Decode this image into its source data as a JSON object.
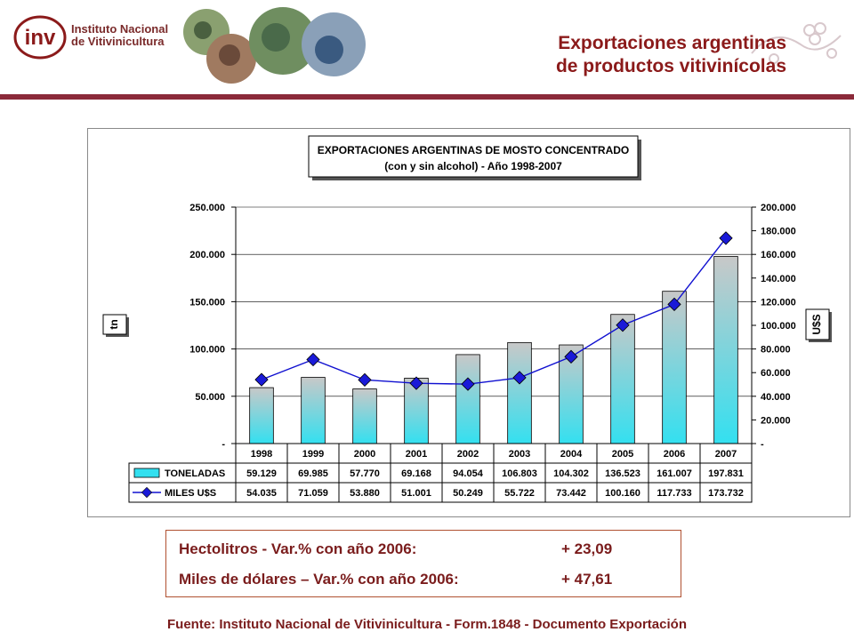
{
  "header": {
    "logo_letters": "inv",
    "logo_line1": "Instituto Nacional",
    "logo_line2": "de Vitivinicultura",
    "title_line1": "Exportaciones argentinas",
    "title_line2": "de productos vitivinícolas"
  },
  "info": {
    "row1_label": "Hectolitros - Var.% con año 2006:",
    "row1_value": "+ 23,09",
    "row2_label": "Miles de dólares – Var.% con año 2006:",
    "row2_value": "+ 47,61"
  },
  "source": "Fuente: Instituto Nacional de Vitivinicultura - Form.1848 - Documento Exportación",
  "colors": {
    "accent": "#8b1a1a",
    "rule": "#8b2a3a",
    "bar_top": "#c8c8c8",
    "bar_bottom": "#33e0f0",
    "line": "#1010d0"
  },
  "chart_data": {
    "type": "bar",
    "title_line1": "EXPORTACIONES ARGENTINAS DE MOSTO CONCENTRADO",
    "title_line2": "(con y sin alcohol) - Año 1998-2007",
    "categories": [
      "1998",
      "1999",
      "2000",
      "2001",
      "2002",
      "2003",
      "2004",
      "2005",
      "2006",
      "2007"
    ],
    "series": [
      {
        "name": "TONELADAS",
        "type": "bar",
        "axis": "left",
        "values": [
          59129,
          69985,
          57770,
          69168,
          94054,
          106803,
          104302,
          136523,
          161007,
          197831
        ],
        "labels": [
          "59.129",
          "69.985",
          "57.770",
          "69.168",
          "94.054",
          "106.803",
          "104.302",
          "136.523",
          "161.007",
          "197.831"
        ]
      },
      {
        "name": "MILES U$S",
        "type": "line",
        "axis": "right",
        "values": [
          54035,
          71059,
          53880,
          51001,
          50249,
          55722,
          73442,
          100160,
          117733,
          173732
        ],
        "labels": [
          "54.035",
          "71.059",
          "53.880",
          "51.001",
          "50.249",
          "55.722",
          "73.442",
          "100.160",
          "117.733",
          "173.732"
        ]
      }
    ],
    "ylabel_left": "tn",
    "ylabel_right": "U$S",
    "ylim_left": [
      0,
      250000
    ],
    "ylim_right": [
      0,
      200000
    ],
    "yticks_left": [
      "250.000",
      "200.000",
      "150.000",
      "100.000",
      "50.000",
      "-"
    ],
    "yticks_right": [
      "200.000",
      "180.000",
      "160.000",
      "140.000",
      "120.000",
      "100.000",
      "80.000",
      "60.000",
      "40.000",
      "20.000",
      "-"
    ],
    "grid": true,
    "legend": "data-table"
  }
}
